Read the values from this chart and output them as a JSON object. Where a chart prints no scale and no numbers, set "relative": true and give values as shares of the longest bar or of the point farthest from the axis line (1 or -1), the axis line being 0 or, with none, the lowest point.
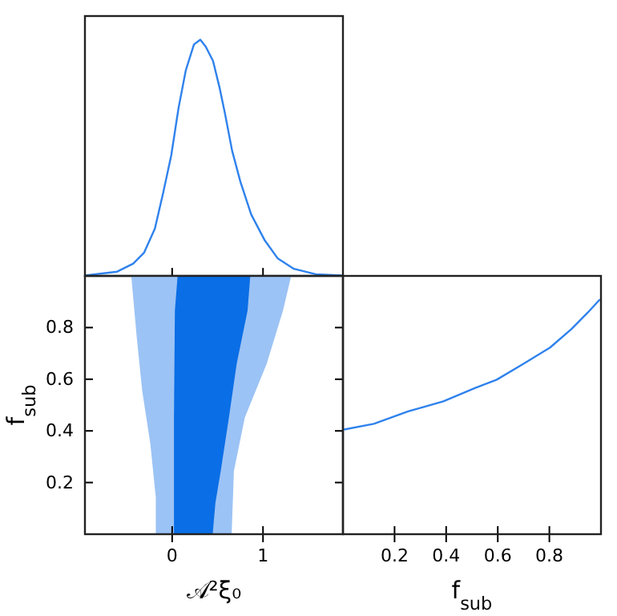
{
  "chart_data": [
    {
      "type": "line",
      "relative": true,
      "xlim": [
        -0.96,
        1.88
      ],
      "xticks": [
        {
          "value": 0,
          "label": null
        },
        {
          "value": 1,
          "label": null
        }
      ],
      "tick_labels": false,
      "series": [
        {
          "color": "#2f82ec",
          "x": [
            -0.96,
            -0.605,
            -0.428,
            -0.31,
            -0.19,
            -0.1,
            -0.01,
            0.07,
            0.15,
            0.24,
            0.31,
            0.37,
            0.45,
            0.52,
            0.58,
            0.66,
            0.75,
            0.87,
            1.02,
            1.16,
            1.34,
            1.58,
            1.87
          ],
          "values": [
            0.002,
            0.018,
            0.052,
            0.098,
            0.2,
            0.35,
            0.51,
            0.71,
            0.87,
            0.98,
            1,
            0.97,
            0.91,
            0.8,
            0.69,
            0.53,
            0.4,
            0.26,
            0.15,
            0.075,
            0.03,
            0.007,
            0.002
          ]
        }
      ]
    },
    {
      "type": "area",
      "xlim": [
        -0.96,
        1.88
      ],
      "ylim": [
        0,
        1
      ],
      "xticks": [
        0,
        1
      ],
      "yticks": [
        0.2,
        0.4,
        0.6,
        0.8
      ],
      "xlabel": "𝒜²ξ₀",
      "ylabel": "f$_{sub}$",
      "series": [
        {
          "color": "#9cc3f5",
          "x": [
            -0.18,
            -0.18,
            -0.24,
            -0.33,
            -0.39,
            -0.45,
            1.31,
            1.22,
            1.04,
            0.8,
            0.68,
            0.655
          ],
          "values": [
            0,
            0.142,
            0.349,
            0.556,
            0.763,
            1,
            1,
            0.866,
            0.659,
            0.452,
            0.245,
            0
          ]
        },
        {
          "color": "#0a6ee6",
          "x": [
            0.02,
            0.02,
            0.03,
            0.06,
            0.86,
            0.83,
            0.71,
            0.625,
            0.535,
            0.476,
            0.446
          ],
          "values": [
            0,
            0.452,
            0.866,
            1,
            1,
            0.866,
            0.659,
            0.452,
            0.245,
            0.121,
            0
          ]
        }
      ]
    },
    {
      "type": "line",
      "relative": true,
      "xlim": [
        0,
        1
      ],
      "xticks": [
        0.2,
        0.4,
        0.6,
        0.8
      ],
      "xlabel": "f$_{sub}$",
      "tick_labels": "x",
      "series": [
        {
          "color": "#2f82ec",
          "x": [
            0,
            0.12,
            0.244,
            0.389,
            0.513,
            0.596,
            0.7,
            0.803,
            0.886,
            0.948,
            0.996
          ],
          "values": [
            0.445,
            0.47,
            0.52,
            0.566,
            0.623,
            0.658,
            0.726,
            0.795,
            0.874,
            0.943,
            1
          ]
        }
      ]
    }
  ]
}
